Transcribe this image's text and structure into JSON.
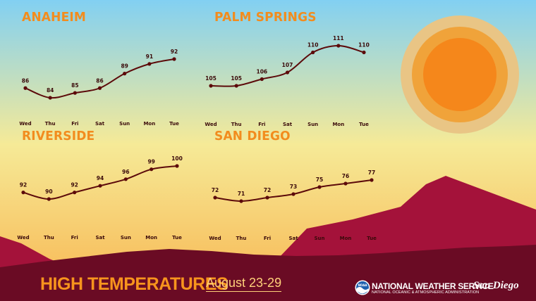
{
  "footer": {
    "title": "HIGH TEMPERATURES",
    "dates": "August 23-29",
    "agency": "NATIONAL WEATHER SERVICE",
    "agency_sub": "NATIONAL OCEANIC & ATMOSPHERIC ADMINISTRATION",
    "office": "San Diego",
    "logo_text": "NOAA"
  },
  "colors": {
    "sky_top": "#82d0f2",
    "sky_mid": "#f6ea97",
    "sky_bottom": "#f8bb55",
    "hills_dark": "#6a0b24",
    "hills_mid": "#a4123a",
    "title": "#f28c1e",
    "line": "#5c0a0a",
    "sun_outer": "#e9c585",
    "sun_middle": "#f0a33a",
    "sun_inner": "#f5871b"
  },
  "chart_data": [
    {
      "type": "line",
      "title": "ANAHEIM",
      "categories": [
        "Wed",
        "Thu",
        "Fri",
        "Sat",
        "Sun",
        "Mon",
        "Tue"
      ],
      "values": [
        86,
        84,
        85,
        86,
        89,
        91,
        92
      ]
    },
    {
      "type": "line",
      "title": "PALM SPRINGS",
      "categories": [
        "Wed",
        "Thu",
        "Fri",
        "Sat",
        "Sun",
        "Mon",
        "Tue"
      ],
      "values": [
        105,
        105,
        106,
        107,
        110,
        111,
        110
      ]
    },
    {
      "type": "line",
      "title": "RIVERSIDE",
      "categories": [
        "Wed",
        "Thu",
        "Fri",
        "Sat",
        "Sun",
        "Mon",
        "Tue"
      ],
      "values": [
        92,
        90,
        92,
        94,
        96,
        99,
        100
      ]
    },
    {
      "type": "line",
      "title": "SAN DIEGO",
      "categories": [
        "Wed",
        "Thu",
        "Fri",
        "Sat",
        "Sun",
        "Mon",
        "Tue"
      ],
      "values": [
        72,
        71,
        72,
        73,
        75,
        76,
        77
      ]
    }
  ]
}
